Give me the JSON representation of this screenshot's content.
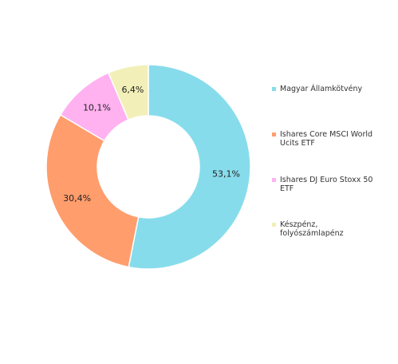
{
  "chart_data": {
    "type": "pie",
    "variant": "donut",
    "slices": [
      {
        "name": "Magyar Államkötvény",
        "value": 53.1,
        "label": "53,1%",
        "color": "#87dcec"
      },
      {
        "name": "Ishares Core MSCI World Ucits ETF",
        "value": 30.4,
        "label": "30,4%",
        "color": "#ff9d6c"
      },
      {
        "name": "Ishares DJ Euro Stoxx 50 ETF",
        "value": 10.1,
        "label": "10,1%",
        "color": "#ffb1f0"
      },
      {
        "name": "Készpénz, folyószámlapénz",
        "value": 6.4,
        "label": "6,4%",
        "color": "#f2f0b8"
      }
    ],
    "legend_position": "right",
    "start_angle": "top, clockwise"
  }
}
